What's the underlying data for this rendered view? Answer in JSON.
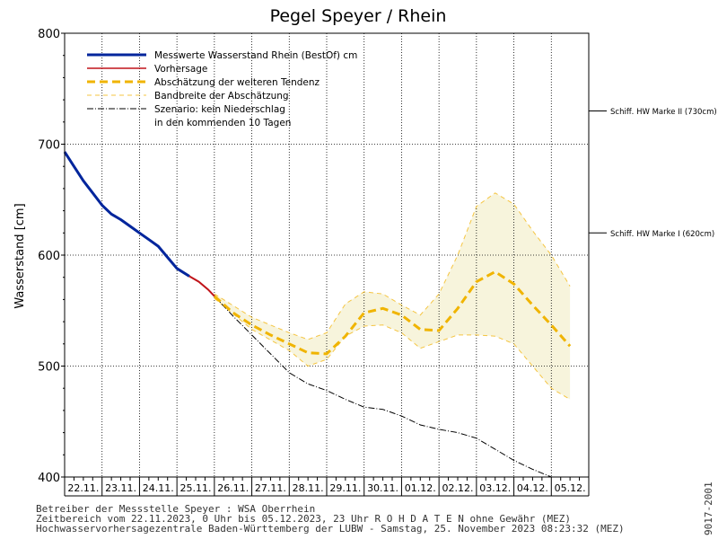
{
  "chart_data": {
    "type": "line",
    "title": "Pegel Speyer / Rhein",
    "ylabel": "Wasserstand [cm]",
    "xlabel": "",
    "ylim": [
      400,
      800
    ],
    "yticks": [
      "400",
      "500",
      "600",
      "700",
      "800"
    ],
    "x_range": [
      "2023-11-22",
      "2023-12-06"
    ],
    "categories": [
      "22.11.",
      "23.11.",
      "24.11.",
      "25.11.",
      "26.11.",
      "27.11.",
      "28.11.",
      "29.11.",
      "30.11.",
      "01.12.",
      "02.12.",
      "03.12.",
      "04.12.",
      "05.12."
    ],
    "grid": true,
    "legend_position": "top-left",
    "colors": {
      "measured": "#00259c",
      "forecast": "#c0141a",
      "trend": "#f0b400",
      "band_line": "#f5c542",
      "band_fill": "#f7f4dc",
      "scenario": "#000000"
    },
    "legend": [
      {
        "key": "measured",
        "label": "Messwerte Wasserstand Rhein (BestOf)   cm"
      },
      {
        "key": "forecast",
        "label": "Vorhersage"
      },
      {
        "key": "trend",
        "label": "Abschätzung der weiteren Tendenz"
      },
      {
        "key": "band",
        "label": "Bandbreite der Abschätzung"
      },
      {
        "key": "scenario",
        "label": "Szenario: kein Niederschlag"
      },
      {
        "key": "scenario_note",
        "label": "in den kommenden 10 Tagen"
      }
    ],
    "series": [
      {
        "name": "Messwerte Wasserstand Rhein (BestOf)   cm",
        "x": [
          "2023-11-22 00:00",
          "2023-11-22 06:00",
          "2023-11-22 12:00",
          "2023-11-22 18:00",
          "2023-11-23 00:00",
          "2023-11-23 06:00",
          "2023-11-23 12:00",
          "2023-11-23 18:00",
          "2023-11-24 00:00",
          "2023-11-24 06:00",
          "2023-11-24 12:00",
          "2023-11-24 18:00",
          "2023-11-25 00:00",
          "2023-11-25 08:00"
        ],
        "y": [
          693,
          680,
          667,
          656,
          645,
          637,
          632,
          626,
          620,
          614,
          608,
          598,
          588,
          581
        ]
      },
      {
        "name": "Vorhersage",
        "x": [
          "2023-11-25 08:00",
          "2023-11-25 14:00",
          "2023-11-25 20:00",
          "2023-11-26 00:00"
        ],
        "y": [
          581,
          576,
          569,
          563
        ]
      },
      {
        "name": "Abschätzung der weiteren Tendenz",
        "x": [
          "2023-11-26 00:00",
          "2023-11-26 12:00",
          "2023-11-27 00:00",
          "2023-11-27 12:00",
          "2023-11-28 00:00",
          "2023-11-28 12:00",
          "2023-11-29 00:00",
          "2023-11-29 12:00",
          "2023-11-30 00:00",
          "2023-11-30 12:00",
          "2023-12-01 00:00",
          "2023-12-01 12:00",
          "2023-12-02 00:00",
          "2023-12-02 12:00",
          "2023-12-03 00:00",
          "2023-12-03 12:00",
          "2023-12-04 00:00",
          "2023-12-04 12:00",
          "2023-12-05 00:00",
          "2023-12-05 12:00"
        ],
        "y": [
          563,
          548,
          537,
          528,
          520,
          512,
          511,
          527,
          548,
          552,
          546,
          533,
          532,
          552,
          576,
          585,
          574,
          555,
          537,
          518
        ]
      },
      {
        "name": "Bandbreite der Abschätzung (oben)",
        "x": [
          "2023-11-26 00:00",
          "2023-11-27 00:00",
          "2023-11-28 00:00",
          "2023-11-28 12:00",
          "2023-11-29 00:00",
          "2023-11-29 12:00",
          "2023-11-30 00:00",
          "2023-11-30 12:00",
          "2023-12-01 00:00",
          "2023-12-01 12:00",
          "2023-12-02 00:00",
          "2023-12-02 12:00",
          "2023-12-03 00:00",
          "2023-12-03 12:00",
          "2023-12-04 00:00",
          "2023-12-04 12:00",
          "2023-12-05 00:00",
          "2023-12-05 12:00"
        ],
        "y": [
          565,
          544,
          530,
          524,
          530,
          556,
          567,
          565,
          555,
          546,
          565,
          600,
          644,
          656,
          646,
          622,
          600,
          572
        ]
      },
      {
        "name": "Bandbreite der Abschätzung (unten)",
        "x": [
          "2023-11-26 00:00",
          "2023-11-27 00:00",
          "2023-11-28 00:00",
          "2023-11-28 12:00",
          "2023-11-29 00:00",
          "2023-11-29 12:00",
          "2023-11-30 00:00",
          "2023-11-30 12:00",
          "2023-12-01 00:00",
          "2023-12-01 12:00",
          "2023-12-02 00:00",
          "2023-12-02 12:00",
          "2023-12-03 00:00",
          "2023-12-03 12:00",
          "2023-12-04 00:00",
          "2023-12-04 12:00",
          "2023-12-05 00:00",
          "2023-12-05 12:00"
        ],
        "y": [
          561,
          533,
          514,
          500,
          506,
          527,
          536,
          537,
          530,
          516,
          522,
          528,
          528,
          527,
          520,
          500,
          480,
          470
        ]
      },
      {
        "name": "Szenario: kein Niederschlag",
        "x": [
          "2023-11-26 00:00",
          "2023-11-26 12:00",
          "2023-11-27 00:00",
          "2023-11-27 12:00",
          "2023-11-28 00:00",
          "2023-11-28 12:00",
          "2023-11-29 00:00",
          "2023-11-29 12:00",
          "2023-11-30 00:00",
          "2023-11-30 12:00",
          "2023-12-01 00:00",
          "2023-12-01 12:00",
          "2023-12-02 00:00",
          "2023-12-02 12:00",
          "2023-12-03 00:00",
          "2023-12-03 12:00",
          "2023-12-04 00:00",
          "2023-12-04 12:00",
          "2023-12-05 00:00"
        ],
        "y": [
          563,
          545,
          528,
          511,
          494,
          484,
          478,
          470,
          463,
          461,
          455,
          447,
          443,
          440,
          435,
          425,
          415,
          407,
          400
        ]
      }
    ],
    "annotations": [
      {
        "label": "Schiff. HW Marke II (730cm)",
        "value": 730
      },
      {
        "label": "Schiff. HW Marke I (620cm)",
        "value": 620
      }
    ]
  },
  "footer": {
    "line1": "Betreiber der Messstelle Speyer : WSA Oberrhein",
    "line2": "Zeitbereich vom 22.11.2023, 0 Uhr bis 05.12.2023, 23 Uhr    R O H D A T E N ohne Gewähr (MEZ)",
    "line3": "Hochwasservorhersagezentrale Baden-Württemberg der LUBW - Samstag, 25. November 2023 08:23:32 (MEZ)",
    "code": "9017-2001"
  }
}
